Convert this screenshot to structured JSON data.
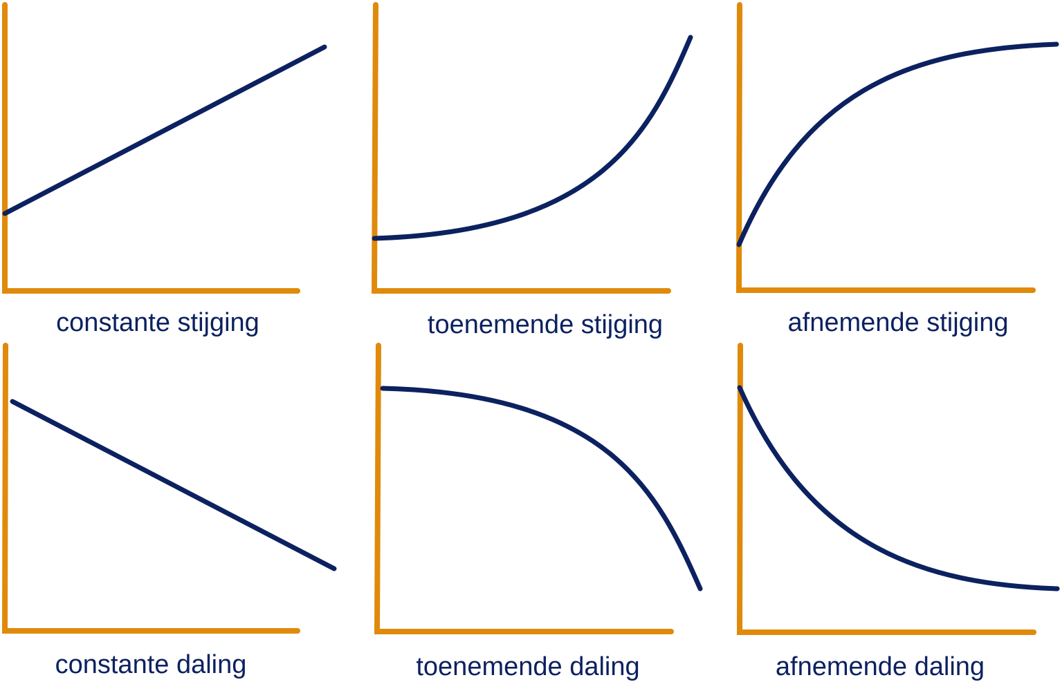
{
  "colors": {
    "axis": "#e08a0b",
    "curve": "#0c2160",
    "caption": "#0c2160",
    "background": "#ffffff"
  },
  "panels": [
    {
      "id": "constante-stijging",
      "caption": "constante stijging"
    },
    {
      "id": "toenemende-stijging",
      "caption": "toenemende stijging"
    },
    {
      "id": "afnemende-stijging",
      "caption": "afnemende stijging"
    },
    {
      "id": "constante-daling",
      "caption": "constante daling"
    },
    {
      "id": "toenemende-daling",
      "caption": "toenemende daling"
    },
    {
      "id": "afnemende-daling",
      "caption": "afnemende daling"
    }
  ]
}
